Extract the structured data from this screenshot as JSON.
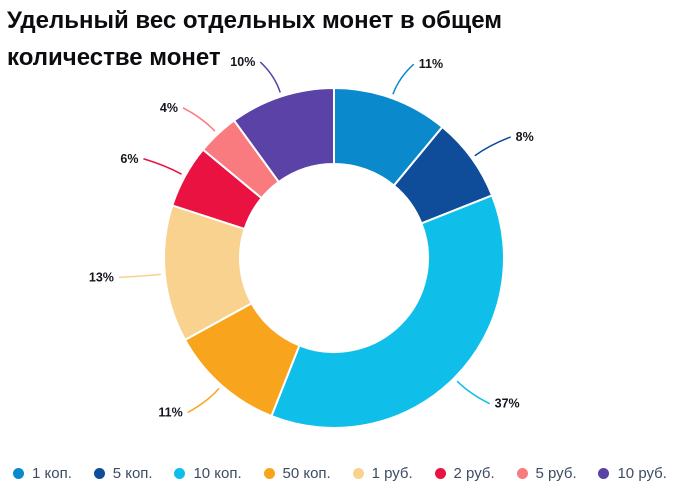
{
  "title": "Удельный вес отдельных монет в общем количестве монет",
  "chart_data": {
    "type": "pie",
    "subtype": "donut",
    "title": "Удельный вес отдельных монет в общем количестве монет",
    "categories": [
      "1 коп.",
      "5 коп.",
      "10 коп.",
      "50 коп.",
      "1 руб.",
      "2 руб.",
      "5 руб.",
      "10 руб."
    ],
    "values": [
      11,
      8,
      37,
      11,
      13,
      6,
      4,
      10
    ],
    "unit": "%",
    "data_labels": [
      "11%",
      "8%",
      "37%",
      "11%",
      "13%",
      "6%",
      "4%",
      "10%"
    ],
    "colors": [
      "#0a89cc",
      "#0f4c9a",
      "#10bfe9",
      "#f8a51d",
      "#f9d28f",
      "#e91240",
      "#f97b80",
      "#5b42a6"
    ],
    "start_angle": "top",
    "direction": "clockwise",
    "legend_position": "bottom",
    "background": "#ffffff",
    "label_color": "#16161f",
    "legend_text_color": "#3d4c63"
  }
}
